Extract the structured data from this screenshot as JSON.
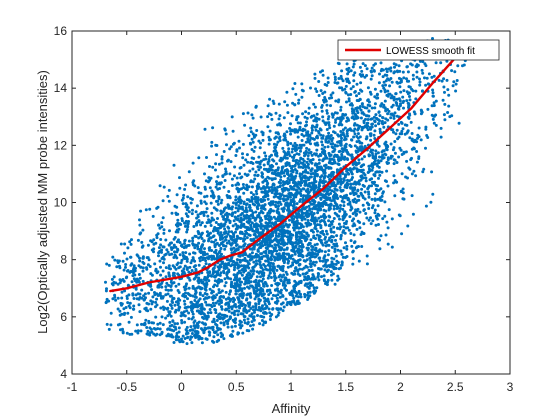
{
  "chart_data": {
    "type": "scatter",
    "title": "",
    "xlabel": "Affinity",
    "ylabel": "Log2(Optically adjusted MM probe intensities)",
    "xlim": [
      -1,
      3
    ],
    "ylim": [
      4,
      16
    ],
    "x_ticks": [
      "-1",
      "-0.5",
      "0",
      "0.5",
      "1",
      "1.5",
      "2",
      "2.5",
      "3"
    ],
    "y_ticks": [
      "4",
      "6",
      "8",
      "10",
      "12",
      "14",
      "16"
    ],
    "grid": false,
    "legend_position": "top-right",
    "colors": {
      "scatter": "#0072BD",
      "fit": "#E00000",
      "axes": "#262626"
    },
    "scatter": {
      "name": "",
      "x_range": [
        -0.7,
        2.6
      ],
      "y_range": [
        4.4,
        15.8
      ],
      "band": [
        {
          "x": -0.7,
          "lower": 5.6,
          "upper": 8.6
        },
        {
          "x": -0.5,
          "lower": 5.4,
          "upper": 9.2
        },
        {
          "x": -0.2,
          "lower": 5.2,
          "upper": 11.0
        },
        {
          "x": 0.0,
          "lower": 5.0,
          "upper": 12.2
        },
        {
          "x": 0.3,
          "lower": 5.1,
          "upper": 12.8
        },
        {
          "x": 0.7,
          "lower": 5.6,
          "upper": 13.6
        },
        {
          "x": 1.0,
          "lower": 6.3,
          "upper": 14.2
        },
        {
          "x": 1.5,
          "lower": 7.3,
          "upper": 15.0
        },
        {
          "x": 2.0,
          "lower": 8.6,
          "upper": 15.6
        },
        {
          "x": 2.3,
          "lower": 9.8,
          "upper": 15.8
        },
        {
          "x": 2.6,
          "lower": 12.0,
          "upper": 15.6
        }
      ]
    },
    "series": [
      {
        "name": "LOWESS smooth fit",
        "type": "line",
        "x": [
          -0.65,
          -0.5,
          -0.3,
          0.0,
          0.15,
          0.25,
          0.35,
          0.45,
          0.55,
          0.7,
          0.9,
          1.1,
          1.3,
          1.5,
          1.7,
          1.9,
          2.1,
          2.3,
          2.45,
          2.6
        ],
        "y": [
          6.9,
          7.0,
          7.2,
          7.4,
          7.55,
          7.75,
          8.0,
          8.15,
          8.25,
          8.7,
          9.25,
          9.9,
          10.5,
          11.25,
          11.9,
          12.6,
          13.3,
          14.2,
          14.85,
          15.5
        ]
      }
    ]
  }
}
